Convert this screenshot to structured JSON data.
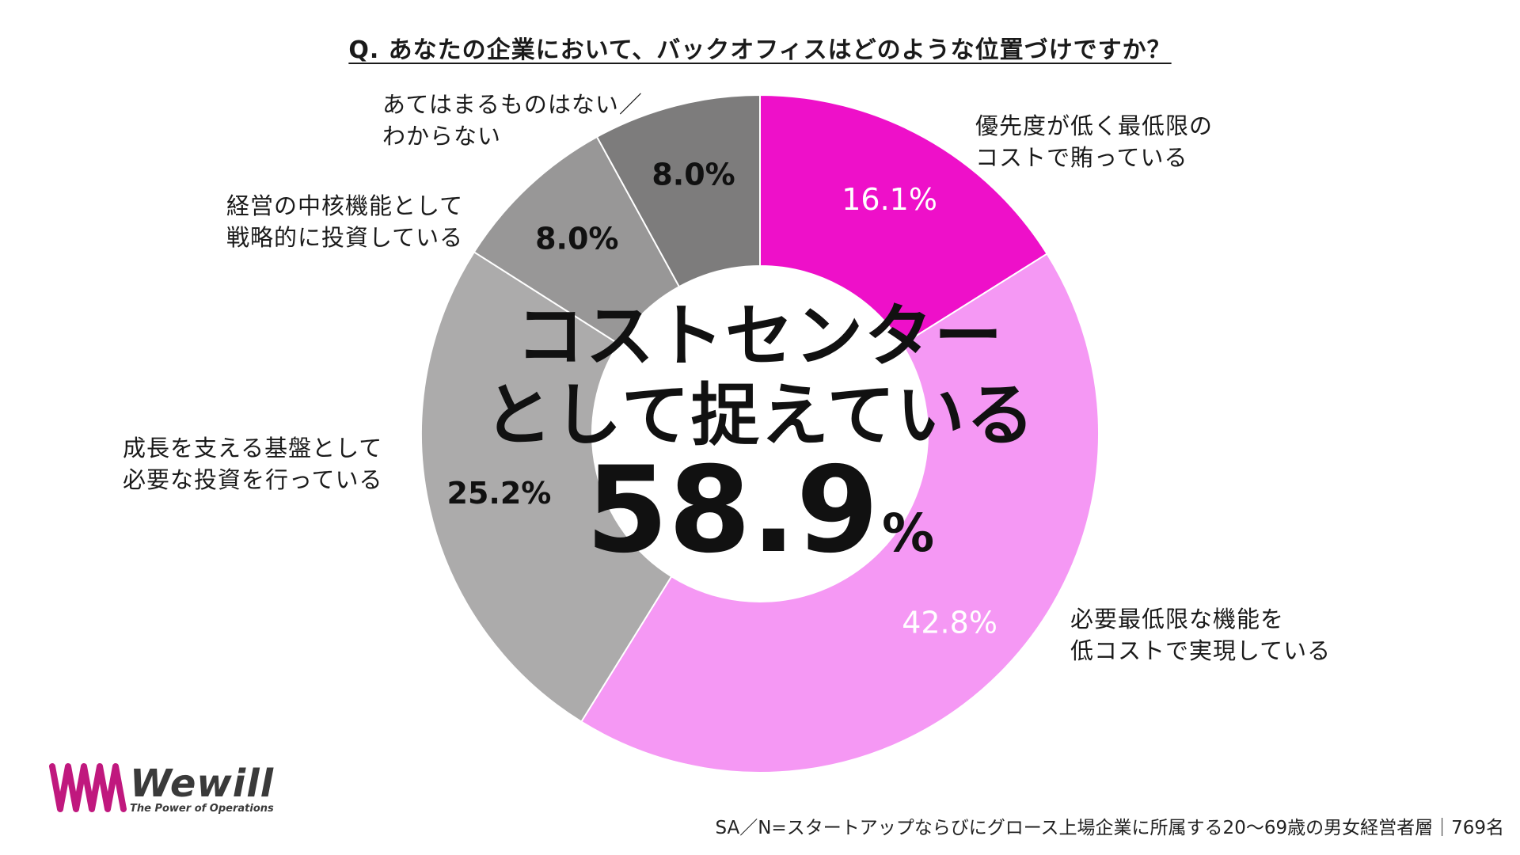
{
  "question": "Q.  あなたの企業において、バックオフィスはどのような位置づけですか？",
  "center": {
    "headline_line1": "コストセンター",
    "headline_line2": "として捉えている",
    "value": "58.9",
    "unit": "%"
  },
  "chart_data": {
    "type": "pie",
    "title": "Q.  あなたの企業において、バックオフィスはどのような位置づけですか？",
    "slices": [
      {
        "lines": [
          "優先度が低く最低限の",
          "コストで賄っている"
        ],
        "value": 16.1,
        "value_label": "16.1%",
        "color": "#ee10c9",
        "label_color": "#ffffff"
      },
      {
        "lines": [
          "必要最低限な機能を",
          "低コストで実現している"
        ],
        "value": 42.8,
        "value_label": "42.8%",
        "color": "#f598f4",
        "label_color": "#ffffff"
      },
      {
        "lines": [
          "成長を支える基盤として",
          "必要な投資を行っている"
        ],
        "value": 25.2,
        "value_label": "25.2%",
        "color": "#acabab",
        "label_color": "#111111"
      },
      {
        "lines": [
          "経営の中核機能として",
          "戦略的に投資している"
        ],
        "value": 8.0,
        "value_label": "8.0%",
        "color": "#989797",
        "label_color": "#111111"
      },
      {
        "lines": [
          "あてはまるものはない／",
          "わからない"
        ],
        "value": 8.0,
        "value_label": "8.0%",
        "color": "#7d7c7c",
        "label_color": "#111111"
      }
    ]
  },
  "logo": {
    "name": "Wewill",
    "tagline": "The Power of Operations",
    "color": "#c0187e"
  },
  "footnote": "SA／N=スタートアップならびにグロース上場企業に所属する20～69歳の男女経営者層｜769名"
}
